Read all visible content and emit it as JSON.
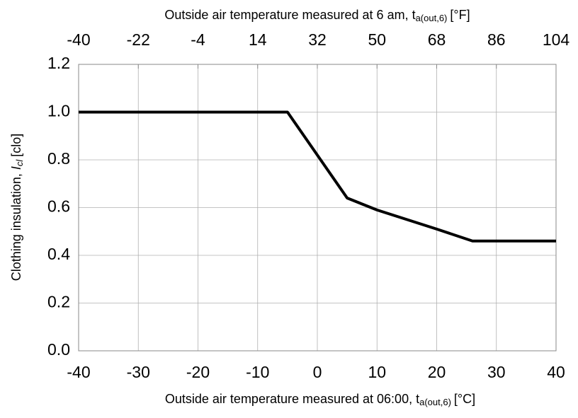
{
  "chart_data": {
    "type": "line",
    "x_label": {
      "text": "Outside air temperature measured at 06:00, t",
      "subscript": "a(out,6)",
      "unit": "[°C]"
    },
    "x2_label": {
      "text": "Outside air temperature measured at 6 am, t",
      "subscript": "a(out,6)",
      "unit": "[°F]"
    },
    "y_label": {
      "text": "Clothing insulation, ",
      "symbol": "I",
      "subscript": "cl",
      "unit": "[clo]"
    },
    "x": [
      -40,
      -5,
      0,
      5,
      10,
      15,
      20,
      26,
      40
    ],
    "series": [
      {
        "color": "#000000",
        "values": [
          1.0,
          1.0,
          0.82,
          0.64,
          0.59,
          0.55,
          0.51,
          0.46,
          0.46
        ]
      }
    ],
    "xlim": [
      -40,
      40
    ],
    "xticks": [
      -40,
      -30,
      -20,
      -10,
      0,
      10,
      20,
      30,
      40
    ],
    "x2lim": [
      -40,
      104
    ],
    "x2ticks": [
      -40,
      -22,
      -4,
      14,
      32,
      50,
      68,
      86,
      104
    ],
    "ylim": [
      0,
      1.2
    ],
    "yticks": [
      {
        "value": 0,
        "label": "0.0"
      },
      {
        "value": 0.2,
        "label": "0.2"
      },
      {
        "value": 0.4,
        "label": "0.4"
      },
      {
        "value": 0.6,
        "label": "0.6"
      },
      {
        "value": 0.8,
        "label": "0.8"
      },
      {
        "value": 1,
        "label": "1.0"
      },
      {
        "value": 1.2,
        "label": "1.2"
      }
    ],
    "grid": true
  }
}
